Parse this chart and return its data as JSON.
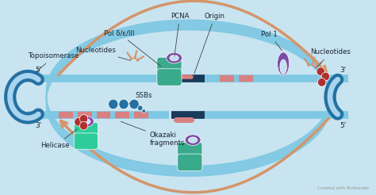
{
  "bg_color": "#ddeef8",
  "watermark": "Created with BioRender",
  "labels": {
    "pcna": "PCNA",
    "origin": "Origin",
    "pol_delta": "Pol δ/ε/III",
    "nucleotides_left": "Nucleotides",
    "topoisomerase": "Topoisomerase",
    "ssbs": "SSBs",
    "helicase": "Helicase",
    "okazaki": "Okazaki\nfragments",
    "pol1": "Pol 1",
    "nucleotides_right": "Nucleotides",
    "five_prime_top": "5'",
    "three_prime_top": "3'",
    "three_prime_right": "3'",
    "five_prime_right": "5'"
  },
  "colors": {
    "dna_dark_blue": "#1a4f7a",
    "dna_light_blue": "#7ec8e3",
    "pcna_purple": "#7b4fa6",
    "pcna_teal": "#3aaa8c",
    "helicase_purple": "#8e44ad",
    "helicase_teal": "#2ecc9a",
    "pol1_purple": "#7b4fa6",
    "ssb_blue": "#2471a3",
    "okazaki_pink": "#d98080",
    "arrow_orange": "#d4956a",
    "nucleotide_color": "#d4956a",
    "topoisomerase_blue": "#2471a3",
    "wrap_blue": "#c8e4f0",
    "text_color": "#1a252f",
    "watermark_color": "#999999",
    "bubble_fill": "#ddeef8",
    "dark_blue_dna": "#1a3a5c",
    "pink_patch": "#d98080",
    "red_cluster": "#b03030"
  }
}
